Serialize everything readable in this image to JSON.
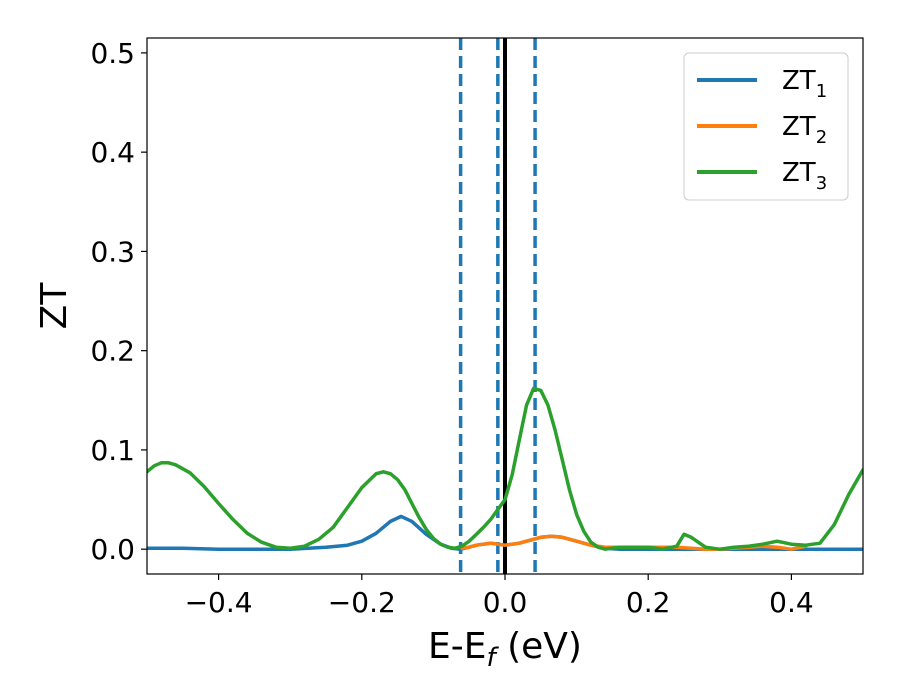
{
  "chart_data": {
    "type": "line",
    "xlabel": {
      "main": "E-E",
      "sub": "f",
      "unit": " (eV)"
    },
    "ylabel": "ZT",
    "xlim": [
      -0.5,
      0.5
    ],
    "ylim": [
      -0.025,
      0.515
    ],
    "xticks": [
      -0.4,
      -0.2,
      0.0,
      0.2,
      0.4
    ],
    "xtick_labels": [
      "−0.4",
      "−0.2",
      "0.0",
      "0.2",
      "0.4"
    ],
    "yticks": [
      0.0,
      0.1,
      0.2,
      0.3,
      0.4,
      0.5
    ],
    "ytick_labels": [
      "0.0",
      "0.1",
      "0.2",
      "0.3",
      "0.4",
      "0.5"
    ],
    "grid": false,
    "legend_position": "top-right",
    "vlines": [
      {
        "x": -0.062,
        "style": "dashed",
        "color": "#1f77b4"
      },
      {
        "x": -0.01,
        "style": "dashed",
        "color": "#1f77b4"
      },
      {
        "x": 0.0,
        "style": "solid",
        "color": "#000000"
      },
      {
        "x": 0.042,
        "style": "dashed",
        "color": "#1f77b4"
      }
    ],
    "series": [
      {
        "name": "ZT",
        "sub": "1",
        "color": "#1f77b4",
        "x": [
          -0.5,
          -0.45,
          -0.4,
          -0.35,
          -0.3,
          -0.25,
          -0.22,
          -0.2,
          -0.18,
          -0.16,
          -0.145,
          -0.13,
          -0.11,
          -0.09,
          -0.075,
          -0.062,
          -0.05,
          -0.04,
          -0.03,
          -0.02,
          -0.01,
          0.0,
          0.01,
          0.02,
          0.03,
          0.04,
          0.05,
          0.065,
          0.08,
          0.1,
          0.12,
          0.14,
          0.16,
          0.18,
          0.2,
          0.22,
          0.24,
          0.26,
          0.28,
          0.3,
          0.32,
          0.34,
          0.36,
          0.38,
          0.4,
          0.42,
          0.44,
          0.46,
          0.48,
          0.5
        ],
        "y": [
          0.001,
          0.001,
          0.0,
          0.0,
          0.0,
          0.002,
          0.004,
          0.008,
          0.016,
          0.028,
          0.033,
          0.028,
          0.015,
          0.005,
          0.001,
          0.0,
          0.002,
          0.004,
          0.005,
          0.006,
          0.005,
          0.004,
          0.005,
          0.006,
          0.008,
          0.01,
          0.012,
          0.013,
          0.012,
          0.008,
          0.004,
          0.001,
          0.0,
          0.0,
          0.0,
          0.0,
          0.0,
          0.0,
          0.0,
          0.0,
          0.0,
          0.0,
          0.0,
          0.0,
          0.0,
          0.0,
          0.0,
          0.0,
          0.0,
          0.0
        ]
      },
      {
        "name": "ZT",
        "sub": "2",
        "color": "#ff7f0e",
        "x": [
          -0.06,
          -0.05,
          -0.04,
          -0.03,
          -0.02,
          -0.01,
          0.0,
          0.01,
          0.02,
          0.03,
          0.04,
          0.05,
          0.065,
          0.08,
          0.1,
          0.12,
          0.14,
          0.16,
          0.18,
          0.2,
          0.22,
          0.24,
          0.26,
          0.28,
          0.3,
          0.32,
          0.34,
          0.36,
          0.38,
          0.4,
          0.42
        ],
        "y": [
          0.001,
          0.002,
          0.004,
          0.005,
          0.006,
          0.005,
          0.004,
          0.005,
          0.006,
          0.008,
          0.01,
          0.012,
          0.013,
          0.012,
          0.008,
          0.004,
          0.002,
          0.002,
          0.002,
          0.002,
          0.002,
          0.002,
          0.001,
          0.0,
          0.0,
          0.001,
          0.002,
          0.003,
          0.002,
          0.0,
          0.003
        ]
      },
      {
        "name": "ZT",
        "sub": "3",
        "color": "#2ca02c",
        "x": [
          -0.5,
          -0.49,
          -0.48,
          -0.47,
          -0.46,
          -0.44,
          -0.42,
          -0.4,
          -0.38,
          -0.36,
          -0.34,
          -0.32,
          -0.3,
          -0.28,
          -0.26,
          -0.24,
          -0.22,
          -0.2,
          -0.18,
          -0.17,
          -0.16,
          -0.15,
          -0.14,
          -0.13,
          -0.12,
          -0.11,
          -0.1,
          -0.09,
          -0.08,
          -0.07,
          -0.06,
          -0.05,
          -0.04,
          -0.03,
          -0.02,
          -0.01,
          0.0,
          0.01,
          0.02,
          0.03,
          0.04,
          0.05,
          0.06,
          0.07,
          0.08,
          0.09,
          0.1,
          0.11,
          0.12,
          0.13,
          0.14,
          0.16,
          0.18,
          0.2,
          0.22,
          0.24,
          0.25,
          0.26,
          0.28,
          0.3,
          0.32,
          0.34,
          0.36,
          0.38,
          0.4,
          0.42,
          0.44,
          0.46,
          0.48,
          0.5
        ],
        "y": [
          0.078,
          0.084,
          0.087,
          0.087,
          0.085,
          0.077,
          0.063,
          0.046,
          0.03,
          0.016,
          0.007,
          0.002,
          0.001,
          0.003,
          0.01,
          0.022,
          0.042,
          0.062,
          0.076,
          0.078,
          0.076,
          0.07,
          0.06,
          0.046,
          0.032,
          0.02,
          0.011,
          0.005,
          0.002,
          0.001,
          0.003,
          0.008,
          0.015,
          0.022,
          0.03,
          0.04,
          0.05,
          0.075,
          0.11,
          0.145,
          0.162,
          0.16,
          0.145,
          0.12,
          0.09,
          0.06,
          0.035,
          0.018,
          0.007,
          0.002,
          0.0,
          0.002,
          0.002,
          0.002,
          0.0,
          0.003,
          0.015,
          0.012,
          0.002,
          0.0,
          0.002,
          0.003,
          0.005,
          0.008,
          0.005,
          0.004,
          0.006,
          0.025,
          0.055,
          0.08
        ]
      }
    ]
  }
}
